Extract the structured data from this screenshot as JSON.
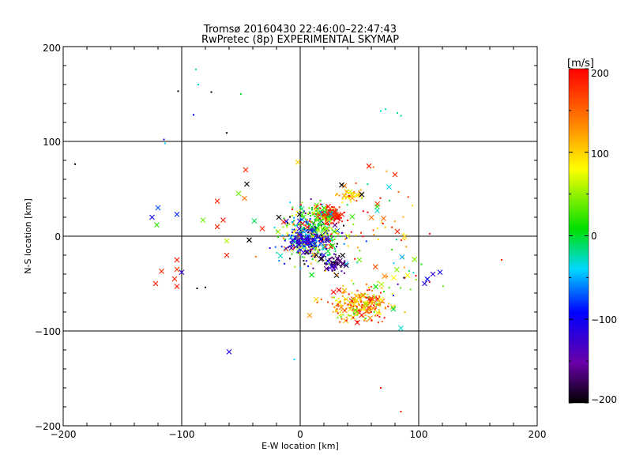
{
  "chart_data": {
    "type": "scatter",
    "title": "Tromsø 20160430 22:46:00–22:47:43",
    "subtitle": "RwPretec (8p) EXPERIMENTAL SKYMAP",
    "xlabel": "E-W location [km]",
    "ylabel": "N-S location [km]",
    "xlim": [
      -200,
      200
    ],
    "ylim": [
      -200,
      200
    ],
    "xticks": [
      "−200",
      "−100",
      "0",
      "100",
      "200"
    ],
    "yticks": [
      "200",
      "100",
      "0",
      "−100",
      "−200"
    ],
    "grid": true,
    "colorbar": {
      "label": "[m/s]",
      "range": [
        -200,
        200
      ],
      "ticks": [
        "200",
        "100",
        "0",
        "−100",
        "−200"
      ],
      "colormap": "black-purple-blue-cyan-green-yellow-red"
    },
    "markers": [
      "x",
      "dot"
    ],
    "clusters": [
      {
        "name": "center",
        "x": 10,
        "y": 0,
        "sx": 14,
        "sy": 14,
        "n": 420,
        "v": -20,
        "sv": 110
      },
      {
        "name": "red-north",
        "x": 25,
        "y": 22,
        "sx": 5,
        "sy": 4,
        "n": 140,
        "v": 185,
        "sv": 15
      },
      {
        "name": "green-north",
        "x": 15,
        "y": 18,
        "sx": 10,
        "sy": 8,
        "n": 90,
        "v": 20,
        "sv": 35
      },
      {
        "name": "yellow-north",
        "x": 42,
        "y": 44,
        "sx": 5,
        "sy": 3,
        "n": 40,
        "v": 100,
        "sv": 25
      },
      {
        "name": "blue-core",
        "x": 2,
        "y": -5,
        "sx": 6,
        "sy": 5,
        "n": 90,
        "v": -110,
        "sv": 25
      },
      {
        "name": "purple-core",
        "x": 28,
        "y": -28,
        "sx": 5,
        "sy": 5,
        "n": 70,
        "v": -165,
        "sv": 25
      },
      {
        "name": "south-east",
        "x": 50,
        "y": -72,
        "sx": 14,
        "sy": 10,
        "n": 260,
        "v": 125,
        "sv": 55
      },
      {
        "name": "east-spread",
        "x": 65,
        "y": 15,
        "sx": 18,
        "sy": 22,
        "n": 50,
        "v": 150,
        "sv": 70
      },
      {
        "name": "south-east-edge",
        "x": 90,
        "y": -45,
        "sx": 15,
        "sy": 12,
        "n": 25,
        "v": 40,
        "sv": 120
      }
    ],
    "points": [
      {
        "x": -190,
        "y": 76,
        "v": -195,
        "m": "dot"
      },
      {
        "x": -103,
        "y": 153,
        "v": -200,
        "m": "dot"
      },
      {
        "x": -88,
        "y": 176,
        "v": -20,
        "m": "dot"
      },
      {
        "x": -86,
        "y": 160,
        "v": -30,
        "m": "dot"
      },
      {
        "x": -75,
        "y": 152,
        "v": -200,
        "m": "dot"
      },
      {
        "x": -50,
        "y": 150,
        "v": 0,
        "m": "dot"
      },
      {
        "x": -90,
        "y": 128,
        "v": -90,
        "m": "dot"
      },
      {
        "x": -62,
        "y": 109,
        "v": -200,
        "m": "dot"
      },
      {
        "x": -115,
        "y": 102,
        "v": -120,
        "m": "dot"
      },
      {
        "x": -114,
        "y": 98,
        "v": -40,
        "m": "dot"
      },
      {
        "x": 68,
        "y": 132,
        "v": -30,
        "m": "dot"
      },
      {
        "x": 72,
        "y": 134,
        "v": -30,
        "m": "dot"
      },
      {
        "x": 82,
        "y": 130,
        "v": -20,
        "m": "dot"
      },
      {
        "x": 85,
        "y": 127,
        "v": -20,
        "m": "dot"
      },
      {
        "x": -120,
        "y": 30,
        "v": -70,
        "m": "x"
      },
      {
        "x": -125,
        "y": 20,
        "v": -100,
        "m": "x"
      },
      {
        "x": -104,
        "y": 23,
        "v": -80,
        "m": "x"
      },
      {
        "x": -121,
        "y": 12,
        "v": 20,
        "m": "x"
      },
      {
        "x": -104,
        "y": -25,
        "v": 190,
        "m": "x"
      },
      {
        "x": -104,
        "y": -35,
        "v": 170,
        "m": "x"
      },
      {
        "x": -106,
        "y": -45,
        "v": 185,
        "m": "x"
      },
      {
        "x": -104,
        "y": -53,
        "v": 190,
        "m": "x"
      },
      {
        "x": -122,
        "y": -50,
        "v": 185,
        "m": "x"
      },
      {
        "x": -117,
        "y": -37,
        "v": 180,
        "m": "x"
      },
      {
        "x": -100,
        "y": -38,
        "v": -120,
        "m": "x"
      },
      {
        "x": -87,
        "y": -55,
        "v": -200,
        "m": "dot"
      },
      {
        "x": -80,
        "y": -54,
        "v": -200,
        "m": "dot"
      },
      {
        "x": -60,
        "y": -122,
        "v": -110,
        "m": "x"
      },
      {
        "x": -82,
        "y": 17,
        "v": 40,
        "m": "x"
      },
      {
        "x": -70,
        "y": 37,
        "v": 185,
        "m": "x"
      },
      {
        "x": -65,
        "y": 17,
        "v": 185,
        "m": "x"
      },
      {
        "x": -46,
        "y": 70,
        "v": 185,
        "m": "x"
      },
      {
        "x": -45,
        "y": 55,
        "v": -200,
        "m": "x"
      },
      {
        "x": -52,
        "y": 45,
        "v": 40,
        "m": "x"
      },
      {
        "x": -47,
        "y": 40,
        "v": 140,
        "m": "x"
      },
      {
        "x": -62,
        "y": -5,
        "v": 60,
        "m": "x"
      },
      {
        "x": -62,
        "y": -20,
        "v": 185,
        "m": "x"
      },
      {
        "x": -43,
        "y": -4,
        "v": -200,
        "m": "x"
      },
      {
        "x": -32,
        "y": 8,
        "v": 180,
        "m": "x"
      },
      {
        "x": -18,
        "y": 20,
        "v": -200,
        "m": "x"
      },
      {
        "x": -14,
        "y": 15,
        "v": 185,
        "m": "x"
      },
      {
        "x": 35,
        "y": 54,
        "v": -200,
        "m": "x"
      },
      {
        "x": 52,
        "y": 44,
        "v": -200,
        "m": "x"
      },
      {
        "x": 58,
        "y": 74,
        "v": 185,
        "m": "x"
      },
      {
        "x": 75,
        "y": 52,
        "v": -40,
        "m": "x"
      },
      {
        "x": 65,
        "y": 27,
        "v": -30,
        "m": "x"
      },
      {
        "x": 80,
        "y": 65,
        "v": 185,
        "m": "x"
      },
      {
        "x": 82,
        "y": 5,
        "v": 185,
        "m": "x"
      },
      {
        "x": 112,
        "y": -40,
        "v": -120,
        "m": "x"
      },
      {
        "x": 118,
        "y": -38,
        "v": -100,
        "m": "x"
      },
      {
        "x": 105,
        "y": -50,
        "v": -110,
        "m": "x"
      },
      {
        "x": 86,
        "y": -22,
        "v": -50,
        "m": "x"
      },
      {
        "x": 50,
        "y": -25,
        "v": 40,
        "m": "x"
      },
      {
        "x": 85,
        "y": -97,
        "v": -30,
        "m": "x"
      },
      {
        "x": 170,
        "y": -25,
        "v": 185,
        "m": "dot"
      },
      {
        "x": 68,
        "y": -160,
        "v": 185,
        "m": "dot"
      },
      {
        "x": 85,
        "y": -185,
        "v": 185,
        "m": "dot"
      },
      {
        "x": -5,
        "y": -130,
        "v": -40,
        "m": "dot"
      },
      {
        "x": -2,
        "y": 78,
        "v": 100,
        "m": "x"
      },
      {
        "x": -70,
        "y": 10,
        "v": 185,
        "m": "x"
      }
    ]
  }
}
